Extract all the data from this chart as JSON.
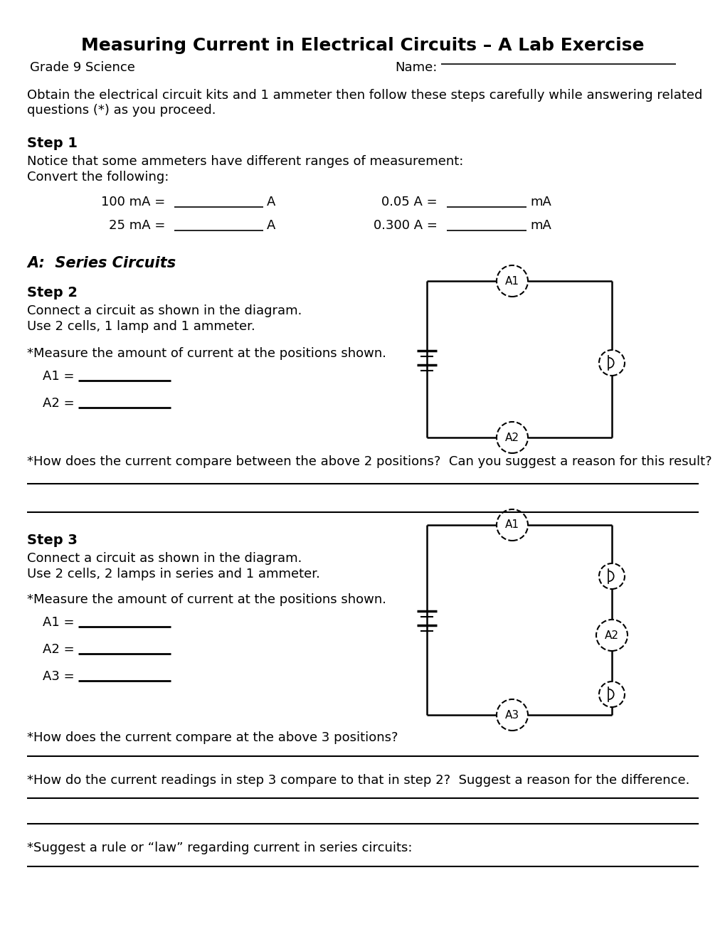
{
  "title": "Measuring Current in Electrical Circuits – A Lab Exercise",
  "subtitle_left": "Grade 9 Science",
  "subtitle_right": "Name:",
  "intro_text": "Obtain the electrical circuit kits and 1 ammeter then follow these steps carefully while answering related\nquestions (*) as you proceed.",
  "step1_title": "Step 1",
  "step1_line1": "Notice that some ammeters have different ranges of measurement:",
  "step1_line2": "Convert the following:",
  "series_title": "A:  Series Circuits",
  "step2_title": "Step 2",
  "step2_line1": "Connect a circuit as shown in the diagram.",
  "step2_line2": "Use 2 cells, 1 lamp and 1 ammeter.",
  "step2_measure": "*Measure the amount of current at the positions shown.",
  "step2_question": "*How does the current compare between the above 2 positions?  Can you suggest a reason for this result?",
  "step3_title": "Step 3",
  "step3_line1": "Connect a circuit as shown in the diagram.",
  "step3_line2": "Use 2 cells, 2 lamps in series and 1 ammeter.",
  "step3_measure": "*Measure the amount of current at the positions shown.",
  "step3_question1": "*How does the current compare at the above 3 positions?",
  "step3_question2": "*How do the current readings in step 3 compare to that in step 2?  Suggest a reason for the difference.",
  "step3_question3": "*Suggest a rule or “law” regarding current in series circuits:",
  "bg_color": "#ffffff",
  "text_color": "#000000"
}
